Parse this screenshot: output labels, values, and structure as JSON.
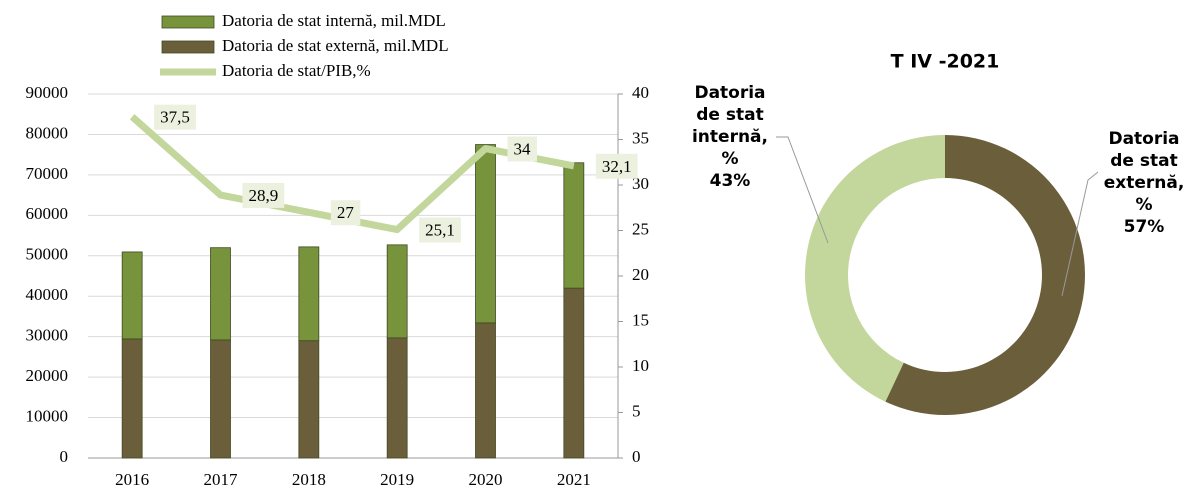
{
  "chart_data": [
    {
      "type": "bar-line",
      "categories": [
        "2016",
        "2017",
        "2018",
        "2019",
        "2020",
        "2021"
      ],
      "series": [
        {
          "name": "Datoria de stat internă, mil.MDL",
          "color": "#77933c",
          "values": [
            21500,
            22800,
            23200,
            23000,
            44100,
            31000
          ]
        },
        {
          "name": "Datoria de stat externă, mil.MDL",
          "color": "#6b5e3b",
          "values": [
            29450,
            29200,
            29000,
            29700,
            33400,
            42000
          ]
        },
        {
          "name": "Datoria de stat/PIB,%",
          "color": "#c3d69b",
          "axis": "y2",
          "values": [
            37.5,
            28.9,
            27,
            25.1,
            34,
            32.1
          ],
          "value_labels": [
            "37,5",
            "28,9",
            "27",
            "25,1",
            "34",
            "32,1"
          ]
        }
      ],
      "ylim": [
        0,
        90000
      ],
      "yticks": [
        0,
        10000,
        20000,
        30000,
        40000,
        50000,
        60000,
        70000,
        80000,
        90000
      ],
      "y2lim": [
        0,
        40
      ],
      "y2ticks": [
        0,
        5,
        10,
        15,
        20,
        25,
        30,
        35,
        40
      ],
      "grid": true
    },
    {
      "type": "donut",
      "title": "T IV -2021",
      "categories": [
        "Datoria de stat externă, %",
        "Datoria de stat internă, %"
      ],
      "values": [
        57,
        43
      ],
      "value_labels": [
        "57%",
        "43%"
      ],
      "colors": [
        "#6b5e3b",
        "#c3d69b"
      ]
    }
  ]
}
